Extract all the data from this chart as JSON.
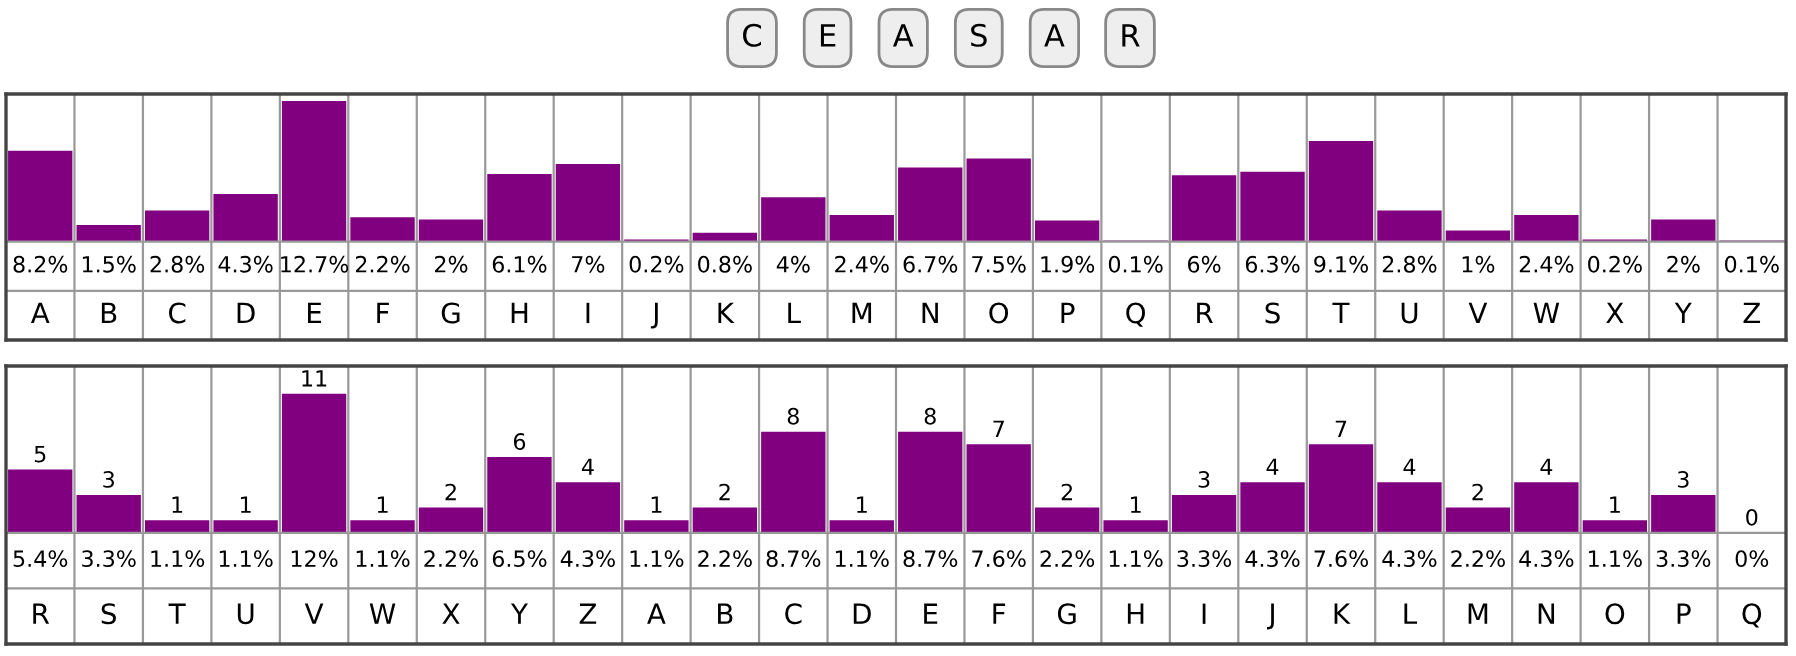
{
  "chart_data": [
    {
      "type": "bar",
      "annotations": [
        "C",
        "E",
        "A",
        "S",
        "A",
        "R"
      ],
      "categories": [
        "A",
        "B",
        "C",
        "D",
        "E",
        "F",
        "G",
        "H",
        "I",
        "J",
        "K",
        "L",
        "M",
        "N",
        "O",
        "P",
        "Q",
        "R",
        "S",
        "T",
        "U",
        "V",
        "W",
        "X",
        "Y",
        "Z"
      ],
      "series": [
        {
          "color": "#800080",
          "values": [
            8.2,
            1.5,
            2.8,
            4.3,
            12.7,
            2.2,
            2,
            6.1,
            7,
            0.2,
            0.8,
            4,
            2.4,
            6.7,
            7.5,
            1.9,
            0.1,
            6,
            6.3,
            9.1,
            2.8,
            1,
            2.4,
            0.2,
            2,
            0.1
          ],
          "value_labels": [
            "8.2%",
            "1.5%",
            "2.8%",
            "4.3%",
            "12.7%",
            "2.2%",
            "2%",
            "6.1%",
            "7%",
            "0.2%",
            "0.8%",
            "4%",
            "2.4%",
            "6.7%",
            "7.5%",
            "1.9%",
            "0.1%",
            "6%",
            "6.3%",
            "9.1%",
            "2.8%",
            "1%",
            "2.4%",
            "0.2%",
            "2%",
            "0.1%"
          ]
        }
      ]
    },
    {
      "type": "bar",
      "data_labels": true,
      "categories": [
        "R",
        "S",
        "T",
        "U",
        "V",
        "W",
        "X",
        "Y",
        "Z",
        "A",
        "B",
        "C",
        "D",
        "E",
        "F",
        "G",
        "H",
        "I",
        "J",
        "K",
        "L",
        "M",
        "N",
        "O",
        "P",
        "Q"
      ],
      "series": [
        {
          "color": "#800080",
          "values": [
            5,
            3,
            1,
            1,
            11,
            1,
            2,
            6,
            4,
            1,
            2,
            8,
            1,
            8,
            7,
            2,
            1,
            3,
            4,
            7,
            4,
            2,
            4,
            1,
            3,
            0
          ]
        }
      ],
      "annotations": [
        "5.4%",
        "3.3%",
        "1.1%",
        "1.1%",
        "12%",
        "1.1%",
        "2.2%",
        "6.5%",
        "4.3%",
        "1.1%",
        "2.2%",
        "8.7%",
        "1.1%",
        "8.7%",
        "7.6%",
        "2.2%",
        "1.1%",
        "3.3%",
        "4.3%",
        "7.6%",
        "4.3%",
        "2.2%",
        "4.3%",
        "1.1%",
        "3.3%",
        "0%"
      ]
    }
  ]
}
